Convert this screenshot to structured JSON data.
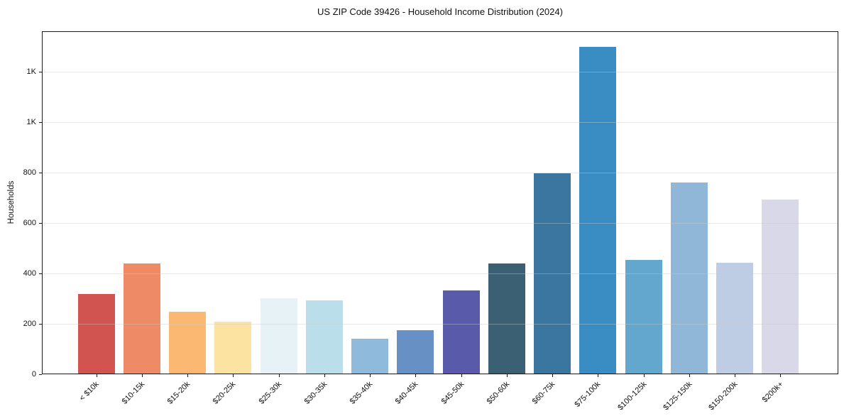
{
  "chart_data": {
    "type": "bar",
    "title": "US ZIP Code 39426 - Household Income Distribution (2024)",
    "xlabel": "",
    "ylabel": "Households",
    "categories": [
      "< $10k",
      "$10-15k",
      "$15-20k",
      "$20-25k",
      "$25-30k",
      "$30-35k",
      "$35-40k",
      "$40-45k",
      "$45-50k",
      "$50-60k",
      "$60-75k",
      "$75-100k",
      "$100-125k",
      "$125-150k",
      "$150-200k",
      "$200k+"
    ],
    "values": [
      320,
      440,
      247,
      209,
      301,
      292,
      141,
      176,
      334,
      441,
      799,
      1300,
      454,
      761,
      442,
      694
    ],
    "bar_colors": [
      "#d25450",
      "#ef8a67",
      "#fab873",
      "#fde3a2",
      "#e6f2f6",
      "#badfeb",
      "#90badc",
      "#6790c4",
      "#5a5aaa",
      "#3b6073",
      "#3a76a0",
      "#3a8dc2",
      "#63a6ce",
      "#91b7d8",
      "#bfcde4",
      "#d9d8e8"
    ],
    "ylim": [
      0,
      1362
    ],
    "yticks": [
      {
        "value": 0,
        "label": "0"
      },
      {
        "value": 200,
        "label": "200"
      },
      {
        "value": 400,
        "label": "400"
      },
      {
        "value": 600,
        "label": "600"
      },
      {
        "value": 800,
        "label": "800"
      },
      {
        "value": 1000,
        "label": "1K"
      },
      {
        "value": 1200,
        "label": "1K"
      }
    ],
    "grid": "horizontal",
    "legend": "none",
    "background": "#ffffff",
    "spine_color": "#1a1a1a"
  }
}
